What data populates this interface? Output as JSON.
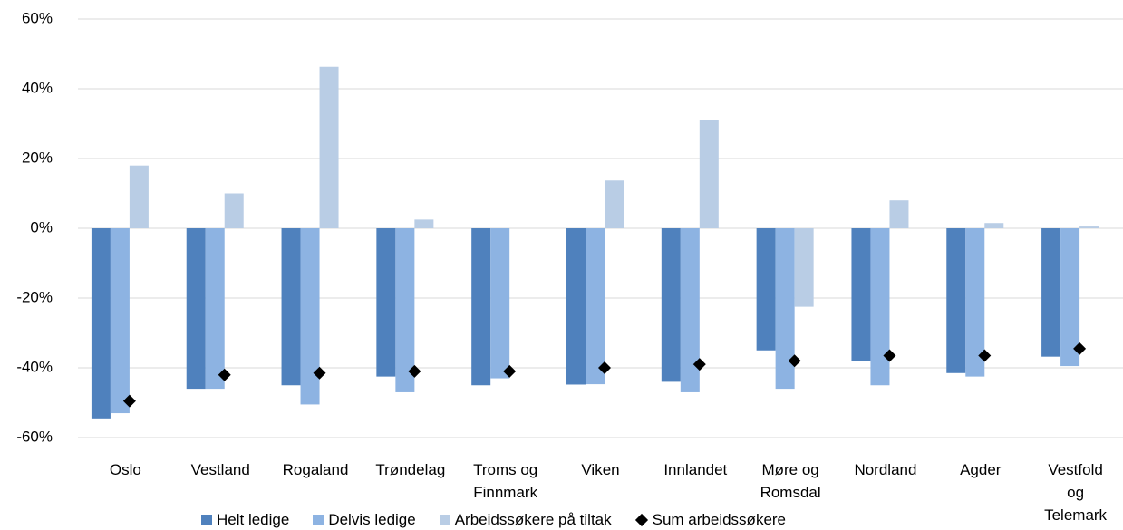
{
  "chart_data": {
    "type": "bar",
    "categories": [
      "Oslo",
      "Vestland",
      "Rogaland",
      "Trøndelag",
      "Troms og Finnmark",
      "Viken",
      "Innlandet",
      "Møre og Romsdal",
      "Nordland",
      "Agder",
      "Vestfold og Telemark"
    ],
    "series": [
      {
        "name": "Helt ledige",
        "color": "#4f81bd",
        "values": [
          -54.5,
          -46,
          -45,
          -42.5,
          -45,
          -44.8,
          -44,
          -35,
          -38,
          -41.5,
          -36.8
        ]
      },
      {
        "name": "Delvis ledige",
        "color": "#8db3e2",
        "values": [
          -53,
          -46,
          -50.5,
          -47,
          -43,
          -44.7,
          -47,
          -46,
          -45,
          -42.5,
          -39.5
        ]
      },
      {
        "name": "Arbeidssøkere på tiltak",
        "color": "#b9cde5",
        "values": [
          18,
          10,
          46.3,
          2.5,
          0,
          13.7,
          31,
          -22.5,
          8,
          1.5,
          0.5
        ]
      },
      {
        "name": "Sum arbeidssøkere",
        "color": "#000000",
        "marker": "diamond",
        "values": [
          -49.5,
          -42,
          -41.5,
          -41,
          -41,
          -40,
          -39,
          -38,
          -36.5,
          -36.5,
          -34.5
        ]
      }
    ],
    "ylim": [
      -60,
      60
    ],
    "yticks": [
      {
        "value": -60,
        "label": "-60%"
      },
      {
        "value": -40,
        "label": "-40%"
      },
      {
        "value": -20,
        "label": "-20%"
      },
      {
        "value": 0,
        "label": "0%"
      },
      {
        "value": 20,
        "label": "20%"
      },
      {
        "value": 40,
        "label": "40%"
      },
      {
        "value": 60,
        "label": "60%"
      }
    ],
    "grid": true
  }
}
